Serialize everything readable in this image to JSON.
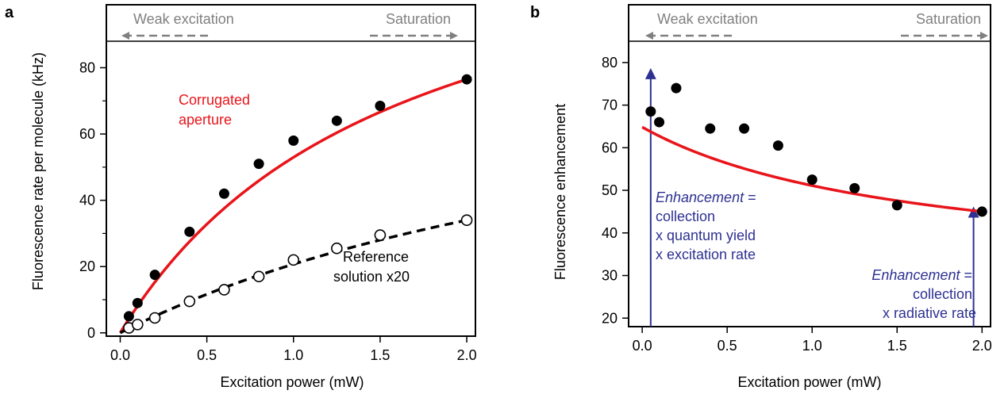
{
  "colors": {
    "fit_red": "#e8141a",
    "reference_fit": "#000000",
    "regime_gray": "#808080",
    "annotation_blue": "#2e3192",
    "marker_black": "#000000"
  },
  "chart_data": [
    {
      "panel": "a",
      "type": "scatter",
      "xlabel": "Excitation power (mW)",
      "ylabel": "Fluorescence rate per molecule (kHz)",
      "xlim": [
        -0.08,
        2.05
      ],
      "ylim": [
        -1,
        88
      ],
      "xticks": [
        0.0,
        0.5,
        1.0,
        1.5,
        2.0
      ],
      "xtick_labels": [
        "0.0",
        "0.5",
        "1.0",
        "1.5",
        "2.0"
      ],
      "yticks": [
        0,
        20,
        40,
        60,
        80
      ],
      "ytick_labels": [
        "0",
        "20",
        "40",
        "60",
        "80"
      ],
      "yminor": [
        10,
        30,
        50,
        70
      ],
      "grid": false,
      "regimes": {
        "left": "Weak excitation",
        "right": "Saturation"
      },
      "series": [
        {
          "name": "Corrugated aperture",
          "label_lines": [
            "Corrugated",
            "aperture"
          ],
          "marker": "filled-circle",
          "color": "#000000",
          "x": [
            0.05,
            0.1,
            0.2,
            0.4,
            0.6,
            0.8,
            1.0,
            1.25,
            1.5,
            2.0
          ],
          "y": [
            5,
            9,
            17.5,
            30.5,
            42,
            51,
            58,
            64,
            68.5,
            76.5
          ],
          "fit": {
            "model": "saturation",
            "A": 137.7,
            "Ps": 1.6,
            "color": "#e8141a",
            "dash": "solid"
          }
        },
        {
          "name": "Reference solution x20",
          "label_lines": [
            "Reference",
            "solution x20"
          ],
          "marker": "open-circle",
          "color": "#000000",
          "x": [
            0.05,
            0.1,
            0.2,
            0.4,
            0.6,
            0.8,
            1.0,
            1.25,
            1.5,
            2.0
          ],
          "y": [
            1.5,
            2.5,
            4.5,
            9.5,
            13,
            17,
            22,
            25.5,
            29.5,
            34
          ],
          "fit": {
            "model": "saturation",
            "A": 94.5,
            "Ps": 3.56,
            "color": "#000000",
            "dash": "dashed"
          }
        }
      ]
    },
    {
      "panel": "b",
      "type": "scatter",
      "xlabel": "Excitation power (mW)",
      "ylabel": "Fluorescence enhancement",
      "xlim": [
        -0.08,
        2.05
      ],
      "ylim": [
        18,
        85
      ],
      "xticks": [
        0.0,
        0.5,
        1.0,
        1.5,
        2.0
      ],
      "xtick_labels": [
        "0.0",
        "0.5",
        "1.0",
        "1.5",
        "2.0"
      ],
      "yticks": [
        20,
        30,
        40,
        50,
        60,
        70,
        80
      ],
      "ytick_labels": [
        "20",
        "30",
        "40",
        "50",
        "60",
        "70",
        "80"
      ],
      "grid": false,
      "regimes": {
        "left": "Weak excitation",
        "right": "Saturation"
      },
      "series": [
        {
          "name": "",
          "marker": "filled-circle",
          "color": "#000000",
          "x": [
            0.05,
            0.1,
            0.2,
            0.4,
            0.6,
            0.8,
            1.0,
            1.25,
            1.5,
            2.0
          ],
          "y": [
            68.5,
            66,
            74,
            64.5,
            64.5,
            60.5,
            52.5,
            50.5,
            46.5,
            45
          ],
          "fit": {
            "model": "ratio",
            "color": "#e8141a",
            "dash": "solid"
          }
        }
      ],
      "annotations": [
        {
          "at_x": 0.05,
          "from_y": 18,
          "to_y": 78.5,
          "italic": "Enhancement",
          "lines": [
            " =",
            "collection",
            "x quantum yield",
            "x excitation rate"
          ],
          "align": "left"
        },
        {
          "at_x": 1.95,
          "from_y": 18,
          "to_y": 46,
          "italic": "Enhancement",
          "lines": [
            " =",
            "collection",
            "x radiative rate"
          ],
          "align": "right"
        }
      ]
    }
  ]
}
